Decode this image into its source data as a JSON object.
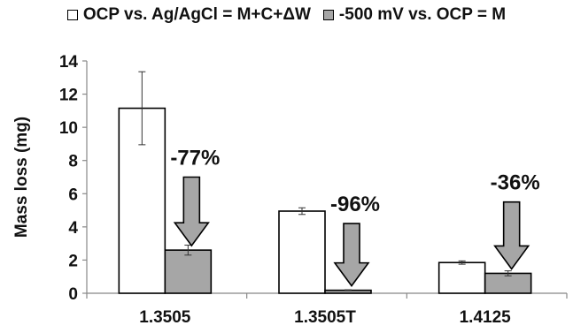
{
  "chart_data": {
    "type": "bar",
    "categories": [
      "1.3505",
      "1.3505T",
      "1.4125"
    ],
    "series": [
      {
        "name": "OCP vs. Ag/AgCl = M+C+ΔW",
        "values": [
          11.15,
          4.95,
          1.85
        ],
        "errors": [
          2.2,
          0.2,
          0.1
        ],
        "color": "#ffffff"
      },
      {
        "name": "-500 mV vs. OCP = M",
        "values": [
          2.6,
          0.18,
          1.2
        ],
        "errors": [
          0.3,
          0.03,
          0.15
        ],
        "color": "#a6a6a6"
      }
    ],
    "annotations": [
      "-77%",
      "-96%",
      "-36%"
    ],
    "ylabel": "Mass loss (mg)",
    "xlabel": "",
    "ylim": [
      0,
      14
    ],
    "yticks": [
      0,
      2,
      4,
      6,
      8,
      10,
      12,
      14
    ],
    "ytick_labels": [
      "0",
      "2",
      "4",
      "6",
      "8",
      "10",
      "12",
      "14"
    ],
    "grid": false,
    "legend_position": "top",
    "arrow_color": "#a6a6a6"
  }
}
